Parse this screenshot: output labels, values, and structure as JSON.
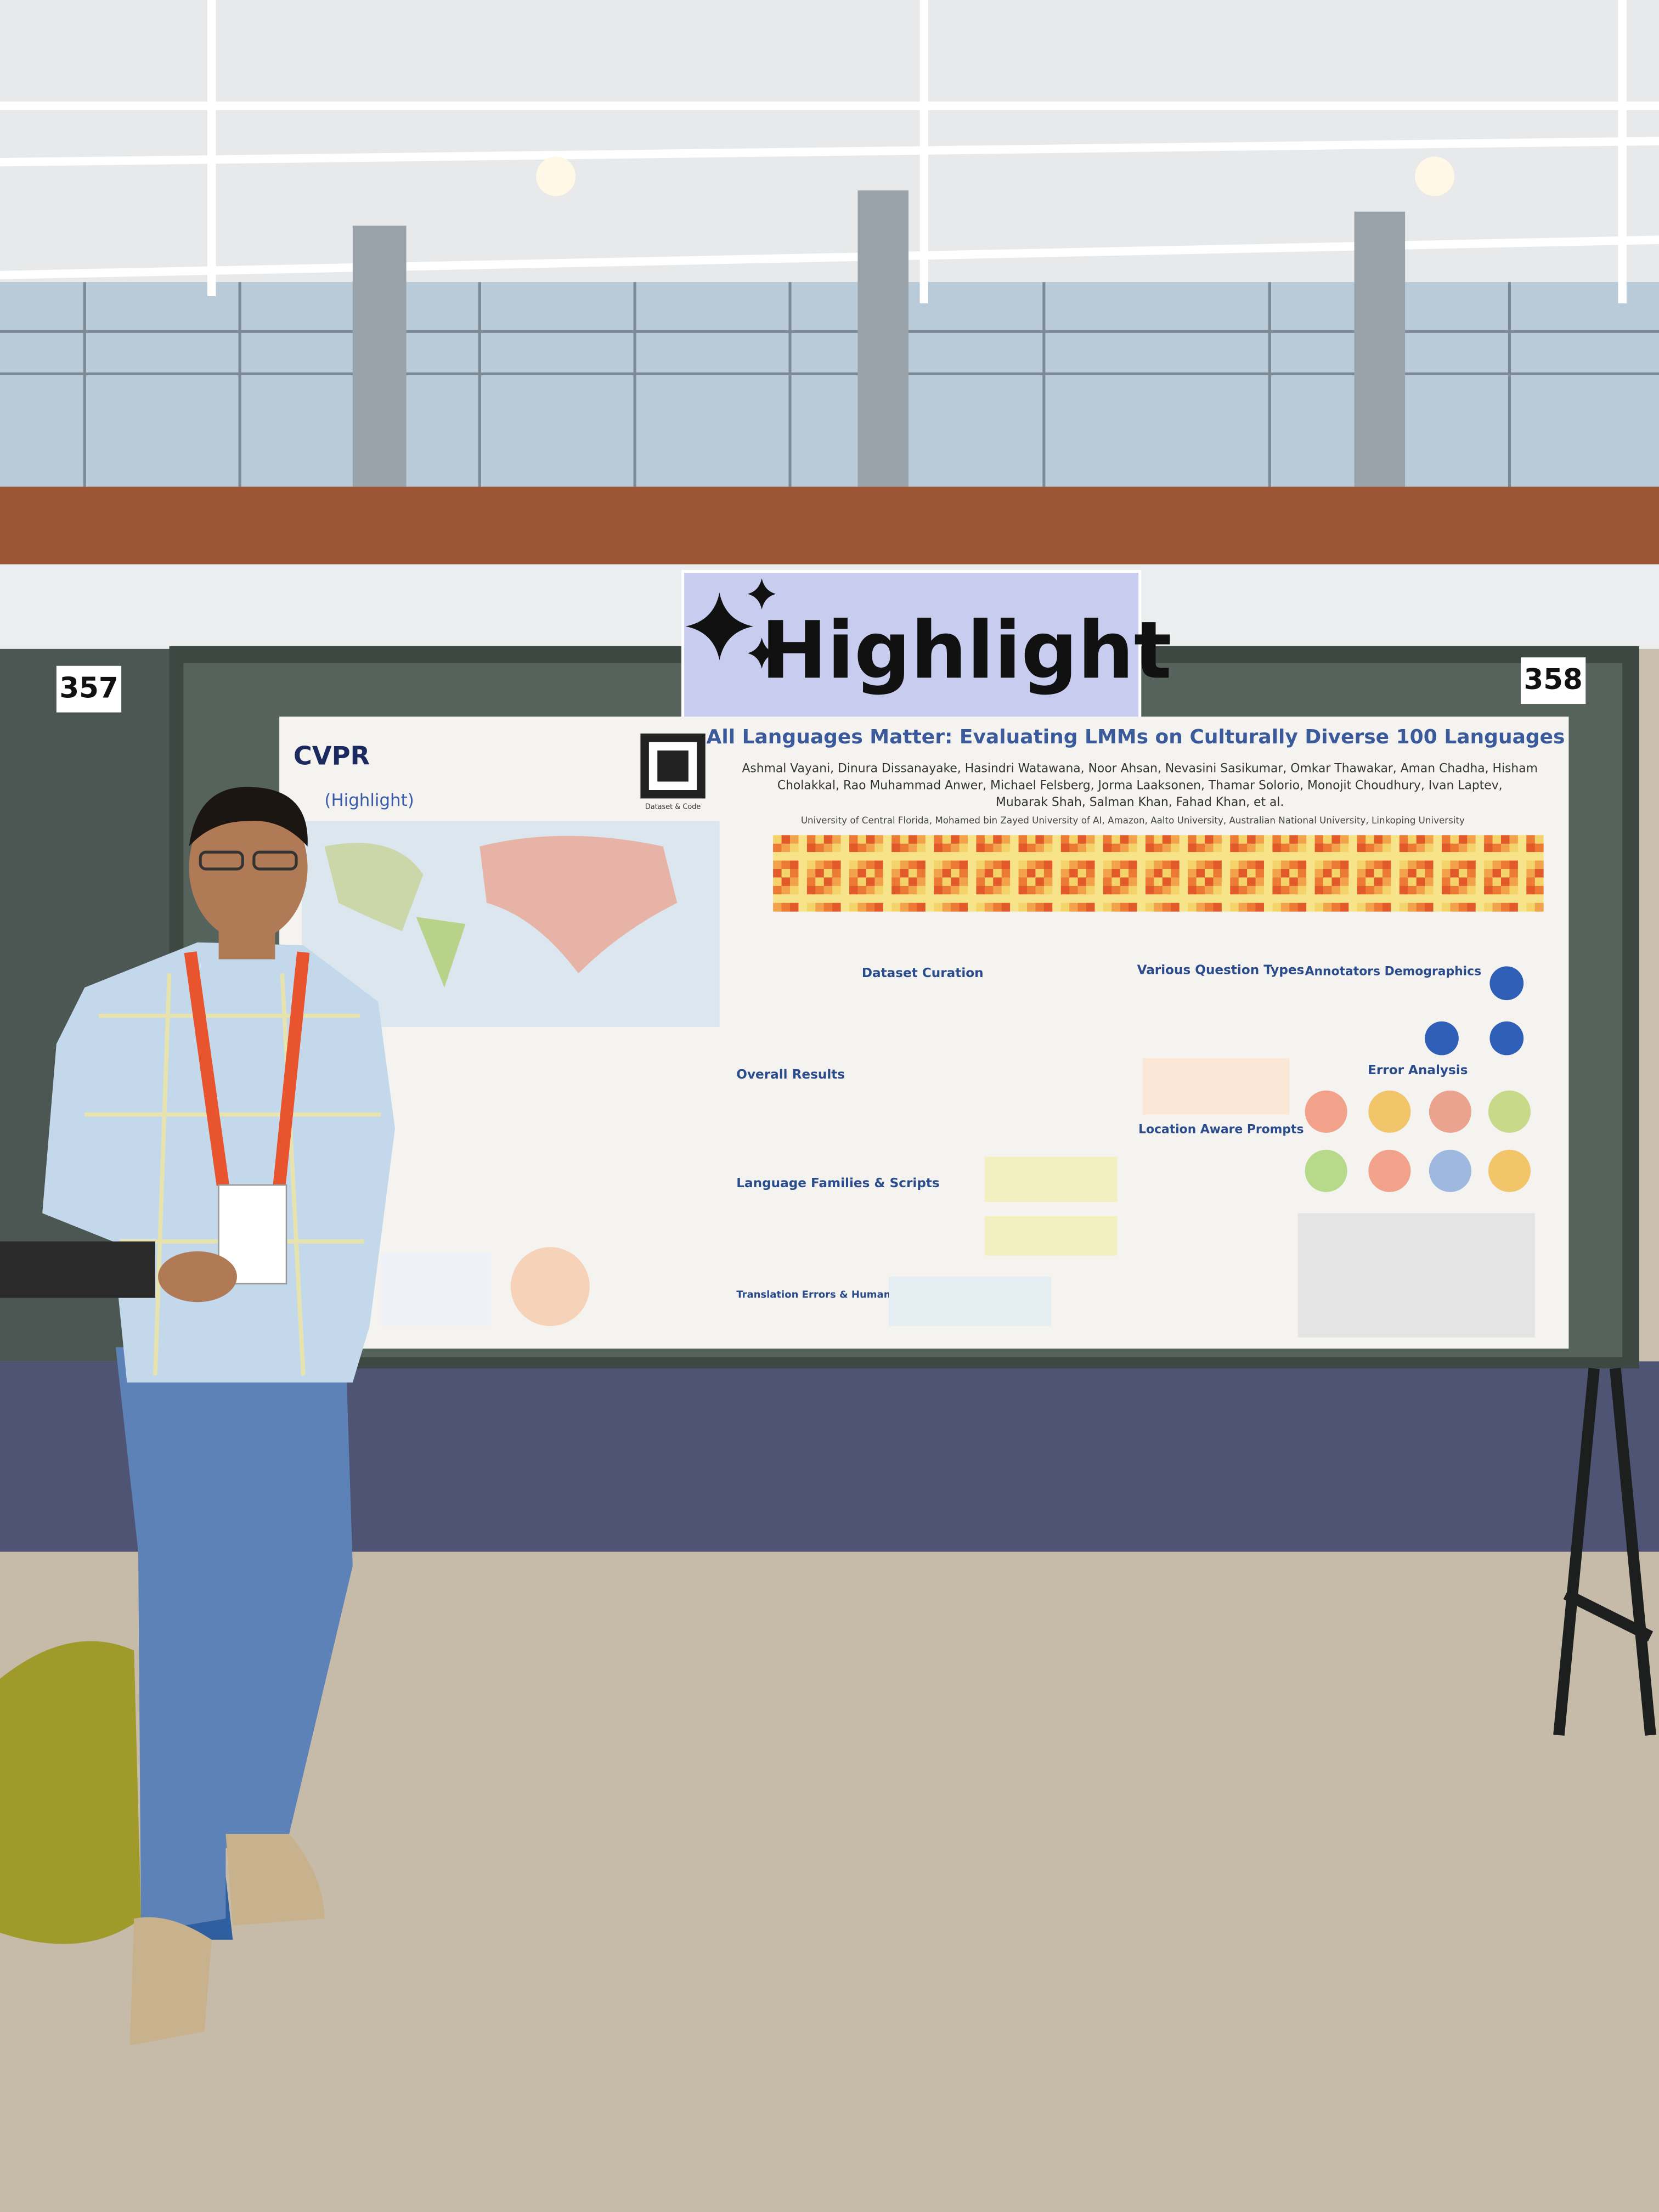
{
  "sign": {
    "text": "Highlight"
  },
  "board_numbers": [
    "357",
    "358"
  ],
  "poster": {
    "logo": "CVPR",
    "highlight_tag": "(Highlight)",
    "qr_caption": "Dataset & Code",
    "title": "All Languages Matter: Evaluating LMMs on Culturally Diverse 100 Languages",
    "authors": [
      "Ashmal Vayani, Dinura Dissanayake, Hasindri Watawana, Noor Ahsan, Nevasini Sasikumar, Omkar Thawakar, Aman Chadha, Hisham",
      "Cholakkal, Rao Muhammad Anwer, Michael Felsberg, Jorma Laaksonen, Thamar Solorio, Monojit Choudhury, Ivan Laptev,",
      "Mubarak Shah, Salman Khan, Fahad Khan, et al."
    ],
    "affiliations": "University of Central Florida, Mohamed bin Zayed University of AI, Amazon, Aalto University, Australian National University, Linkoping University",
    "sections": [
      "Dataset Curation",
      "Various Question Types",
      "Annotators Demographics",
      "Overall Results",
      "Error Analysis",
      "Location Aware Prompts",
      "Language Families & Scripts",
      "Translation Errors & Human Verification"
    ]
  }
}
